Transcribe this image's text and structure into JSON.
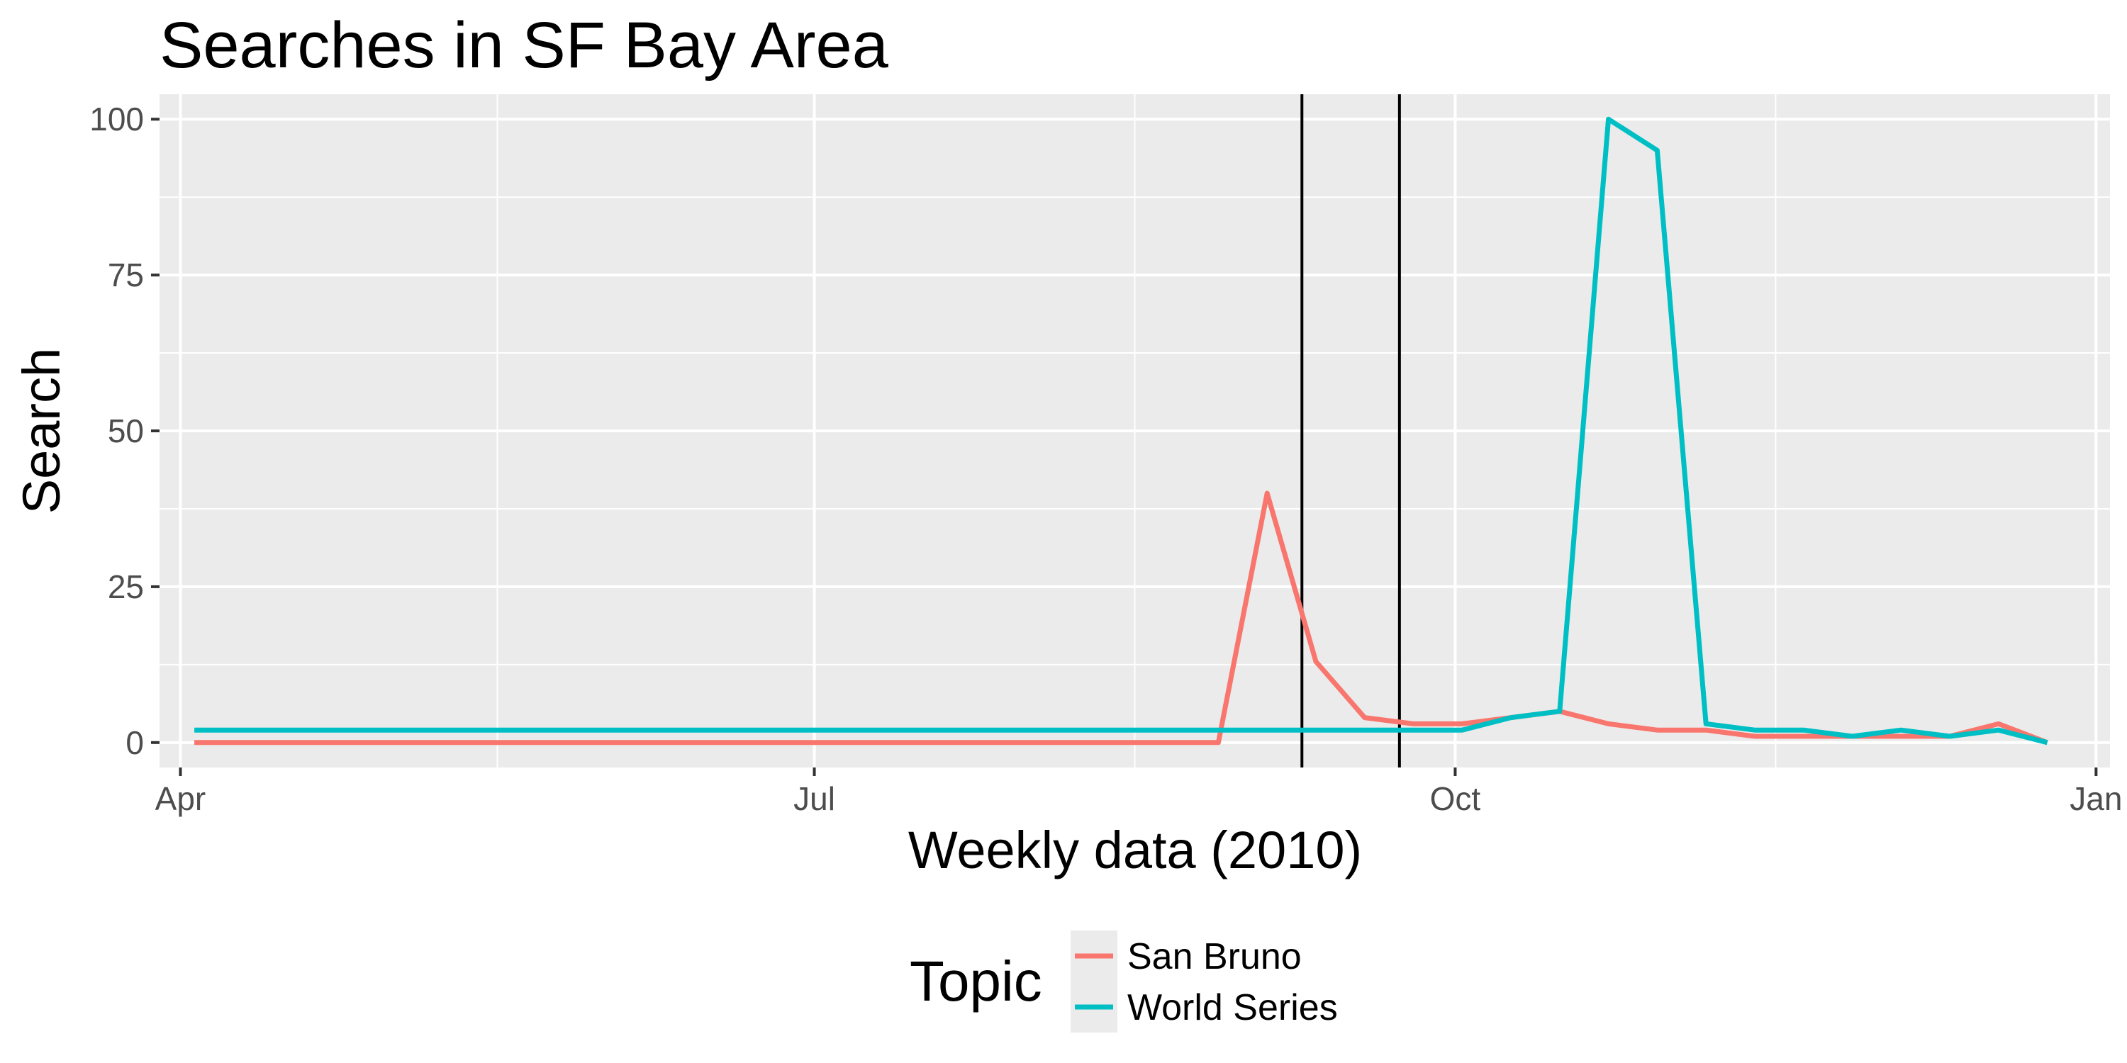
{
  "chart_data": {
    "type": "line",
    "title": "Searches in SF Bay Area",
    "xlabel": "Weekly data (2010)",
    "ylabel": "Search",
    "ylim": [
      -4,
      104
    ],
    "xlim": [
      "2010-03-29",
      "2011-01-03"
    ],
    "x_ticks": [
      {
        "date": "2010-04-01",
        "label": "Apr"
      },
      {
        "date": "2010-07-01",
        "label": "Jul"
      },
      {
        "date": "2010-10-01",
        "label": "Oct"
      },
      {
        "date": "2011-01-01",
        "label": "Jan"
      }
    ],
    "y_ticks": [
      0,
      25,
      50,
      75,
      100
    ],
    "grid": true,
    "legend": {
      "title": "Topic",
      "position": "bottom"
    },
    "vlines": [
      "2010-09-09",
      "2010-09-23"
    ],
    "x": [
      "2010-04-03",
      "2010-08-28",
      "2010-09-04",
      "2010-09-11",
      "2010-09-18",
      "2010-09-25",
      "2010-10-02",
      "2010-10-09",
      "2010-10-16",
      "2010-10-23",
      "2010-10-30",
      "2010-11-06",
      "2010-11-13",
      "2010-11-20",
      "2010-11-27",
      "2010-12-04",
      "2010-12-11",
      "2010-12-18",
      "2010-12-25"
    ],
    "series": [
      {
        "name": "San Bruno",
        "color": "#F8766D",
        "values": [
          0,
          0,
          40,
          13,
          4,
          3,
          3,
          4,
          5,
          3,
          2,
          2,
          1,
          1,
          1,
          1,
          1,
          3,
          0
        ]
      },
      {
        "name": "World Series",
        "color": "#00BFC4",
        "values": [
          2,
          2,
          2,
          2,
          2,
          2,
          2,
          4,
          5,
          100,
          95,
          3,
          2,
          2,
          1,
          2,
          1,
          2,
          0
        ]
      }
    ]
  }
}
